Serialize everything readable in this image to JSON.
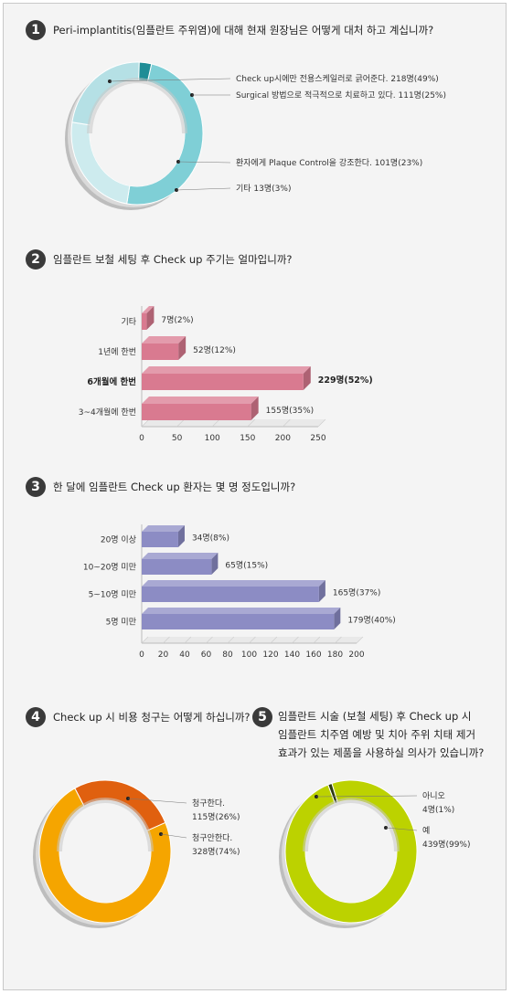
{
  "q1": {
    "number": "1",
    "question": "Peri-implantitis(임플란트 주위염)에 대해 현재 원장님은 어떻게 대처 하고 계십니까?",
    "chart_data": {
      "type": "pie",
      "slices": [
        {
          "label": "Check up시에만 전용스케일러로 긁어준다.",
          "count_text": "218명(49%)",
          "value": 49,
          "color": "#7fcfd6"
        },
        {
          "label": "Surgical 방법으로 적극적으로 치료하고 있다.",
          "count_text": "111명(25%)",
          "value": 25,
          "color": "#cdebee"
        },
        {
          "label": "환자에게 Plaque Control을 강조한다.",
          "count_text": "101명(23%)",
          "value": 23,
          "color": "#b5e0e5"
        },
        {
          "label": "기타",
          "count_text": "13명(3%)",
          "value": 3,
          "color": "#1f8d96"
        }
      ]
    }
  },
  "q2": {
    "number": "2",
    "question": "임플란트 보철 세팅 후 Check up 주기는 얼마입니까?",
    "chart_data": {
      "type": "bar",
      "orientation": "horizontal",
      "color": "#d97a90",
      "categories": [
        "기타",
        "1년에 한번",
        "6개월에 한번",
        "3~4개월에 한번"
      ],
      "values": [
        7,
        52,
        229,
        155
      ],
      "value_labels": [
        "7명(2%)",
        "52명(12%)",
        "229명(52%)",
        "155명(35%)"
      ],
      "bold": [
        false,
        false,
        true,
        false
      ],
      "xlim": [
        0,
        250
      ],
      "xticks": [
        "0",
        "50",
        "100",
        "150",
        "200",
        "250"
      ]
    }
  },
  "q3": {
    "number": "3",
    "question": "한 달에 임플란트 Check up 환자는 몇 명 정도입니까?",
    "chart_data": {
      "type": "bar",
      "orientation": "horizontal",
      "color": "#8c8cc4",
      "categories": [
        "20명 이상",
        "10~20명 미만",
        "5~10명 미만",
        "5명 미만"
      ],
      "values": [
        34,
        65,
        165,
        179
      ],
      "value_labels": [
        "34명(8%)",
        "65명(15%)",
        "165명(37%)",
        "179명(40%)"
      ],
      "bold": [
        false,
        false,
        false,
        false
      ],
      "xlim": [
        0,
        200
      ],
      "xticks": [
        "0",
        "20",
        "40",
        "60",
        "80",
        "100",
        "120",
        "140",
        "160",
        "180",
        "200"
      ]
    }
  },
  "q4": {
    "number": "4",
    "question": "Check up 시 비용 청구는 어떻게 하십니까?",
    "chart_data": {
      "type": "pie",
      "slices": [
        {
          "label": "청구한다.",
          "count_text": "115명(26%)",
          "value": 26,
          "color": "#e0600f"
        },
        {
          "label": "청구안한다.",
          "count_text": "328명(74%)",
          "value": 74,
          "color": "#f5a500"
        }
      ]
    }
  },
  "q5": {
    "number": "5",
    "question_lines": [
      "임플란트 시술 (보철 세팅) 후 Check up 시",
      "임플란트 치주염 예방 및 치아 주위 치태 제거",
      "효과가 있는 제품을 사용하실 의사가 있습니까?"
    ],
    "chart_data": {
      "type": "pie",
      "slices": [
        {
          "label": "아니오",
          "count_text": "4명(1%)",
          "value": 1,
          "color": "#2f3d12"
        },
        {
          "label": "예",
          "count_text": "439명(99%)",
          "value": 99,
          "color": "#bcd200"
        }
      ]
    }
  }
}
